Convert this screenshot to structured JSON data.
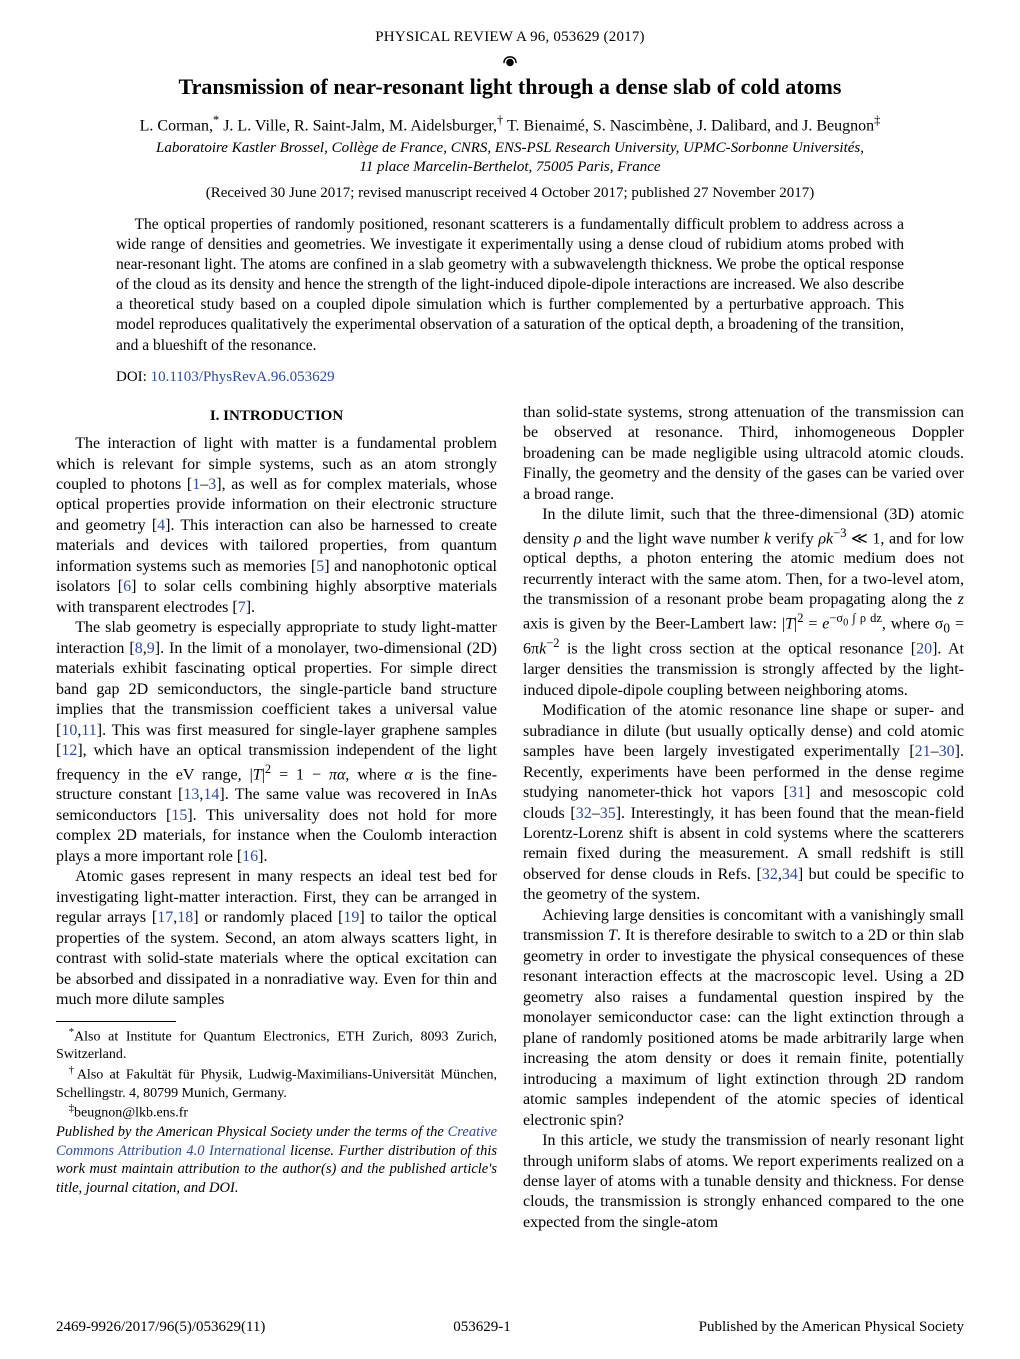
{
  "journal_line": "PHYSICAL REVIEW A 96, 053629 (2017)",
  "title": "Transmission of near-resonant light through a dense slab of cold atoms",
  "authors_html": "L. Corman,<sup>*</sup> J. L. Ville, R. Saint-Jalm, M. Aidelsburger,<sup>†</sup> T. Bienaimé, S. Nascimbène, J. Dalibard, and J. Beugnon<sup>‡</sup>",
  "affiliation1": "Laboratoire Kastler Brossel, Collège de France, CNRS, ENS-PSL Research University, UPMC-Sorbonne Universités,",
  "affiliation2": "11 place Marcelin-Berthelot, 75005 Paris, France",
  "dates": "(Received 30 June 2017; revised manuscript received 4 October 2017; published 27 November 2017)",
  "abstract": "The optical properties of randomly positioned, resonant scatterers is a fundamentally difficult problem to address across a wide range of densities and geometries. We investigate it experimentally using a dense cloud of rubidium atoms probed with near-resonant light. The atoms are confined in a slab geometry with a subwavelength thickness. We probe the optical response of the cloud as its density and hence the strength of the light-induced dipole-dipole interactions are increased. We also describe a theoretical study based on a coupled dipole simulation which is further complemented by a perturbative approach. This model reproduces qualitatively the experimental observation of a saturation of the optical depth, a broadening of the transition, and a blueshift of the resonance.",
  "doi_label": "DOI: ",
  "doi_link_text": "10.1103/PhysRevA.96.053629",
  "section_heading": "I.  INTRODUCTION",
  "left_col": {
    "p1": "The interaction of light with matter is a fundamental problem which is relevant for simple systems, such as an atom strongly coupled to photons [<span class='ref'>1</span>–<span class='ref'>3</span>], as well as for complex materials, whose optical properties provide information on their electronic structure and geometry [<span class='ref'>4</span>]. This interaction can also be harnessed to create materials and devices with tailored properties, from quantum information systems such as memories [<span class='ref'>5</span>] and nanophotonic optical isolators [<span class='ref'>6</span>] to solar cells combining highly absorptive materials with transparent electrodes [<span class='ref'>7</span>].",
    "p2": "The slab geometry is especially appropriate to study light-matter interaction [<span class='ref'>8</span>,<span class='ref'>9</span>]. In the limit of a monolayer, two-dimensional (2D) materials exhibit fascinating optical properties. For simple direct band gap 2D semiconductors, the single-particle band structure implies that the transmission coefficient takes a universal value [<span class='ref'>10</span>,<span class='ref'>11</span>]. This was first measured for single-layer graphene samples [<span class='ref'>12</span>], which have an optical transmission independent of the light frequency in the eV range, |<span class='math'>T</span>|<sup>2</sup> = 1 − <span class='math'>πα</span>, where <span class='math'>α</span> is the fine-structure constant [<span class='ref'>13</span>,<span class='ref'>14</span>]. The same value was recovered in InAs semiconductors [<span class='ref'>15</span>]. This universality does not hold for more complex 2D materials, for instance when the Coulomb interaction plays a more important role [<span class='ref'>16</span>].",
    "p3": "Atomic gases represent in many respects an ideal test bed for investigating light-matter interaction. First, they can be arranged in regular arrays [<span class='ref'>17</span>,<span class='ref'>18</span>] or randomly placed [<span class='ref'>19</span>] to tailor the optical properties of the system. Second, an atom always scatters light, in contrast with solid-state materials where the optical excitation can be absorbed and dissipated in a nonradiative way. Even for thin and much more dilute samples"
  },
  "footnotes": {
    "f1": "Also at Institute for Quantum Electronics, ETH Zurich, 8093 Zurich, Switzerland.",
    "f2": "Also at Fakultät für Physik, Ludwig-Maximilians-Universität München, Schellingstr. 4, 80799 Munich, Germany.",
    "f3": "beugnon@lkb.ens.fr"
  },
  "license_html": "Published by the American Physical Society under the terms of the <a data-name='license-link' data-interactable='true'>Creative Commons Attribution 4.0 International</a> license. Further distribution of this work must maintain attribution to the author(s) and the published article's title, journal citation, and DOI.",
  "right_col": {
    "p1": "than solid-state systems, strong attenuation of the transmission can be observed at resonance. Third, inhomogeneous Doppler broadening can be made negligible using ultracold atomic clouds. Finally, the geometry and the density of the gases can be varied over a broad range.",
    "p2": "In the dilute limit, such that the three-dimensional (3D) atomic density <span class='math'>ρ</span> and the light wave number <span class='math'>k</span> verify <span class='math'>ρk</span><sup>−3</sup> ≪ 1, and for low optical depths, a photon entering the atomic medium does not recurrently interact with the same atom. Then, for a two-level atom, the transmission of a resonant probe beam propagating along the <span class='math'>z</span> axis is given by the Beer-Lambert law: |<span class='math'>T</span>|<sup>2</sup> = <span class='math'>e</span><sup>−σ<sub>0</sub> ∫ ρ dz</sup>, where σ<sub>0</sub> = 6π<span class='math'>k</span><sup>−2</sup> is the light cross section at the optical resonance [<span class='ref'>20</span>]. At larger densities the transmission is strongly affected by the light-induced dipole-dipole coupling between neighboring atoms.",
    "p3": "Modification of the atomic resonance line shape or super- and subradiance in dilute (but usually optically dense) and cold atomic samples have been largely investigated experimentally [<span class='ref'>21</span>–<span class='ref'>30</span>]. Recently, experiments have been performed in the dense regime studying nanometer-thick hot vapors [<span class='ref'>31</span>] and mesoscopic cold clouds [<span class='ref'>32</span>–<span class='ref'>35</span>]. Interestingly, it has been found that the mean-field Lorentz-Lorenz shift is absent in cold systems where the scatterers remain fixed during the measurement. A small redshift is still observed for dense clouds in Refs. [<span class='ref'>32</span>,<span class='ref'>34</span>] but could be specific to the geometry of the system.",
    "p4": "Achieving large densities is concomitant with a vanishingly small transmission <span class='math'>T</span>. It is therefore desirable to switch to a 2D or thin slab geometry in order to investigate the physical consequences of these resonant interaction effects at the macroscopic level. Using a 2D geometry also raises a fundamental question inspired by the monolayer semiconductor case: can the light extinction through a plane of randomly positioned atoms be made arbitrarily large when increasing the atom density or does it remain finite, potentially introducing a maximum of light extinction through 2D random atomic samples independent of the atomic species of identical electronic spin?",
    "p5": "In this article, we study the transmission of nearly resonant light through uniform slabs of atoms. We report experiments realized on a dense layer of atoms with a tunable density and thickness. For dense clouds, the transmission is strongly enhanced compared to the one expected from the single-atom"
  },
  "footer": {
    "left": "2469-9926/2017/96(5)/053629(11)",
    "center": "053629-1",
    "right": "Published by the American Physical Society"
  }
}
